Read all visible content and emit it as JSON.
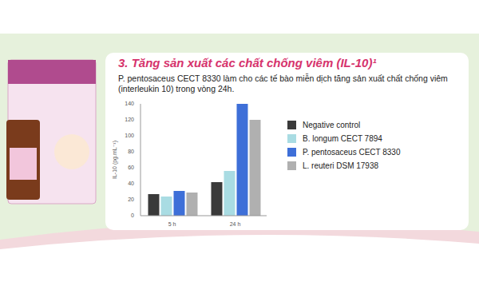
{
  "chart_data": {
    "type": "bar",
    "title": "3. Tăng sản xuất các chất chống viêm (IL-10)¹",
    "subtitle": "P. pentosaceus CECT 8330 làm cho các tế bào miễn dịch tăng sản xuất chất chống viêm (interleukin 10) trong vòng 24h.",
    "y_label": "IL-10 (pg.mL⁻¹)",
    "categories": [
      "5 h",
      "24 h"
    ],
    "series": [
      {
        "name": "Negative control",
        "color": "#3a3a3a",
        "values": [
          27,
          42
        ]
      },
      {
        "name": "B. longum CECT 7894",
        "color": "#a9dce3",
        "values": [
          24,
          56
        ]
      },
      {
        "name": "P. pentosaceus CECT 8330",
        "color": "#3e6fd8",
        "values": [
          31,
          140
        ]
      },
      {
        "name": "L. reuteri DSM 17938",
        "color": "#b0b0b0",
        "values": [
          29,
          120
        ]
      }
    ],
    "ylim": [
      0,
      140
    ],
    "yticks": [
      0,
      20,
      40,
      60,
      80,
      100,
      120,
      140
    ],
    "legend": "right",
    "grid": false
  }
}
